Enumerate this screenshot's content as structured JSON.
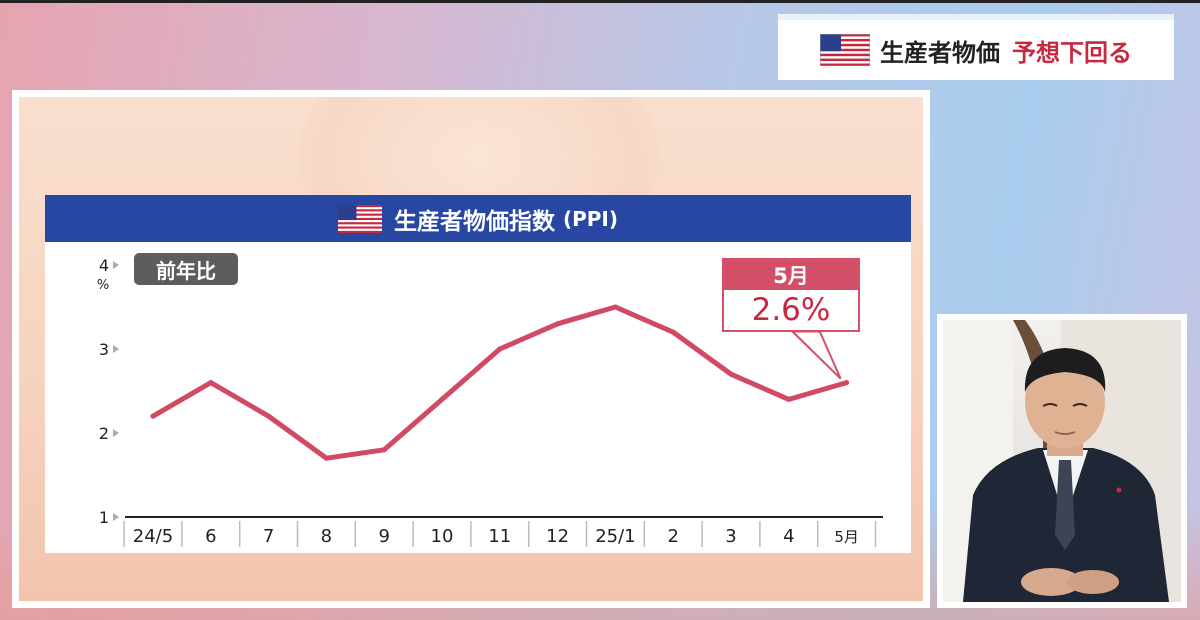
{
  "headline": {
    "main": "生産者物価",
    "accent": "予想下回る",
    "flag_icon": "us-flag-icon"
  },
  "colors": {
    "title_bar": "#2747a3",
    "line": "#d04a63",
    "callout": "#d34f67",
    "accent_text": "#c8283f",
    "badge": "#5d5d5d"
  },
  "chart_data": {
    "type": "line",
    "title": "生産者物価指数",
    "title_suffix": "(PPI)",
    "badge": "前年比",
    "y_unit": "%",
    "ylim": [
      1,
      4
    ],
    "yticks": [
      "1",
      "2",
      "3",
      "4"
    ],
    "categories": [
      "24/5",
      "6",
      "7",
      "8",
      "9",
      "10",
      "11",
      "12",
      "25/1",
      "2",
      "3",
      "4",
      "5月"
    ],
    "values": [
      2.2,
      2.6,
      2.2,
      1.7,
      1.8,
      2.4,
      3.0,
      3.3,
      3.5,
      3.2,
      2.7,
      2.4,
      2.6
    ],
    "callout": {
      "label": "5月",
      "value": "2.6%"
    }
  },
  "video": {
    "description_icon": "anchor-video-icon"
  }
}
